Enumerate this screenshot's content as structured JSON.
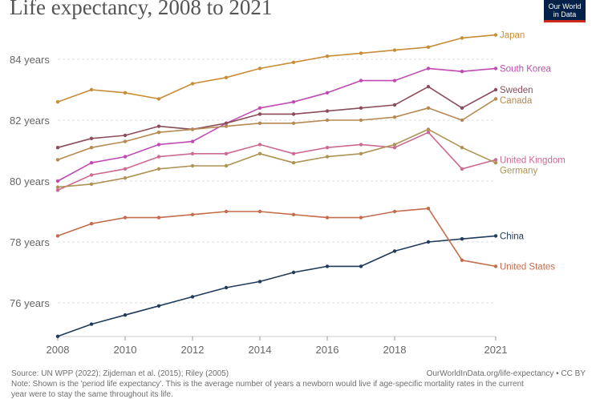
{
  "header": {
    "title": "Life expectancy, 2008 to 2021",
    "logo_line1": "Our World",
    "logo_line2": "in Data"
  },
  "footer": {
    "source": "Source: UN WPP (2022); Zijdeman et al. (2015); Riley (2005)",
    "url": "OurWorldInData.org/life-expectancy • CC BY",
    "note_line1": "Note: Shown is the 'period life expectancy'. This is the average number of years a newborn would live if age-specific mortality rates in the current",
    "note_line2": "year were to stay the same throughout its life."
  },
  "chart_data": {
    "type": "line",
    "title": "Life expectancy, 2008 to 2021",
    "x": [
      2008,
      2009,
      2010,
      2011,
      2012,
      2013,
      2014,
      2015,
      2016,
      2017,
      2018,
      2019,
      2020,
      2021
    ],
    "xlim": [
      2008,
      2021
    ],
    "ylim": [
      75,
      85
    ],
    "x_ticks": [
      2008,
      2010,
      2012,
      2014,
      2016,
      2018,
      2021
    ],
    "x_tick_labels": [
      "2008",
      "2010",
      "2012",
      "2014",
      "2016",
      "2018",
      "2021"
    ],
    "y_ticks": [
      76,
      78,
      80,
      82,
      84
    ],
    "y_tick_labels": [
      "76 years",
      "78 years",
      "80 years",
      "82 years",
      "84 years"
    ],
    "grid": "horizontal dashed",
    "legend": "labels at line ends (right)",
    "series": [
      {
        "name": "Japan",
        "color": "#c88d37",
        "values": [
          82.6,
          83.0,
          82.9,
          82.7,
          83.2,
          83.4,
          83.7,
          83.9,
          84.1,
          84.2,
          84.3,
          84.4,
          84.7,
          84.8
        ]
      },
      {
        "name": "South Korea",
        "color": "#c04bb4",
        "values": [
          80.0,
          80.6,
          80.8,
          81.2,
          81.3,
          81.9,
          82.4,
          82.6,
          82.9,
          83.3,
          83.3,
          83.7,
          83.6,
          83.7
        ]
      },
      {
        "name": "Sweden",
        "color": "#8b4d5a",
        "values": [
          81.1,
          81.4,
          81.5,
          81.8,
          81.7,
          81.9,
          82.2,
          82.2,
          82.3,
          82.4,
          82.5,
          83.1,
          82.4,
          83.0
        ]
      },
      {
        "name": "Canada",
        "color": "#b68951",
        "values": [
          80.7,
          81.1,
          81.3,
          81.6,
          81.7,
          81.8,
          81.9,
          81.9,
          82.0,
          82.0,
          82.1,
          82.4,
          82.0,
          82.7
        ]
      },
      {
        "name": "United Kingdom",
        "color": "#cc6a93",
        "values": [
          79.7,
          80.2,
          80.4,
          80.8,
          80.9,
          80.9,
          81.2,
          80.9,
          81.1,
          81.2,
          81.1,
          81.6,
          80.4,
          80.7
        ]
      },
      {
        "name": "Germany",
        "color": "#ad9354",
        "values": [
          79.8,
          79.9,
          80.1,
          80.4,
          80.5,
          80.5,
          80.9,
          80.6,
          80.8,
          80.9,
          81.2,
          81.7,
          81.1,
          80.6
        ]
      },
      {
        "name": "China",
        "color": "#1f3b5a",
        "values": [
          74.9,
          75.3,
          75.6,
          75.9,
          76.2,
          76.5,
          76.7,
          77.0,
          77.2,
          77.2,
          77.7,
          78.0,
          78.1,
          78.2
        ]
      },
      {
        "name": "United States",
        "color": "#c46c4c",
        "values": [
          78.2,
          78.6,
          78.8,
          78.8,
          78.9,
          79.0,
          79.0,
          78.9,
          78.8,
          78.8,
          79.0,
          79.1,
          77.4,
          77.2
        ]
      }
    ]
  }
}
